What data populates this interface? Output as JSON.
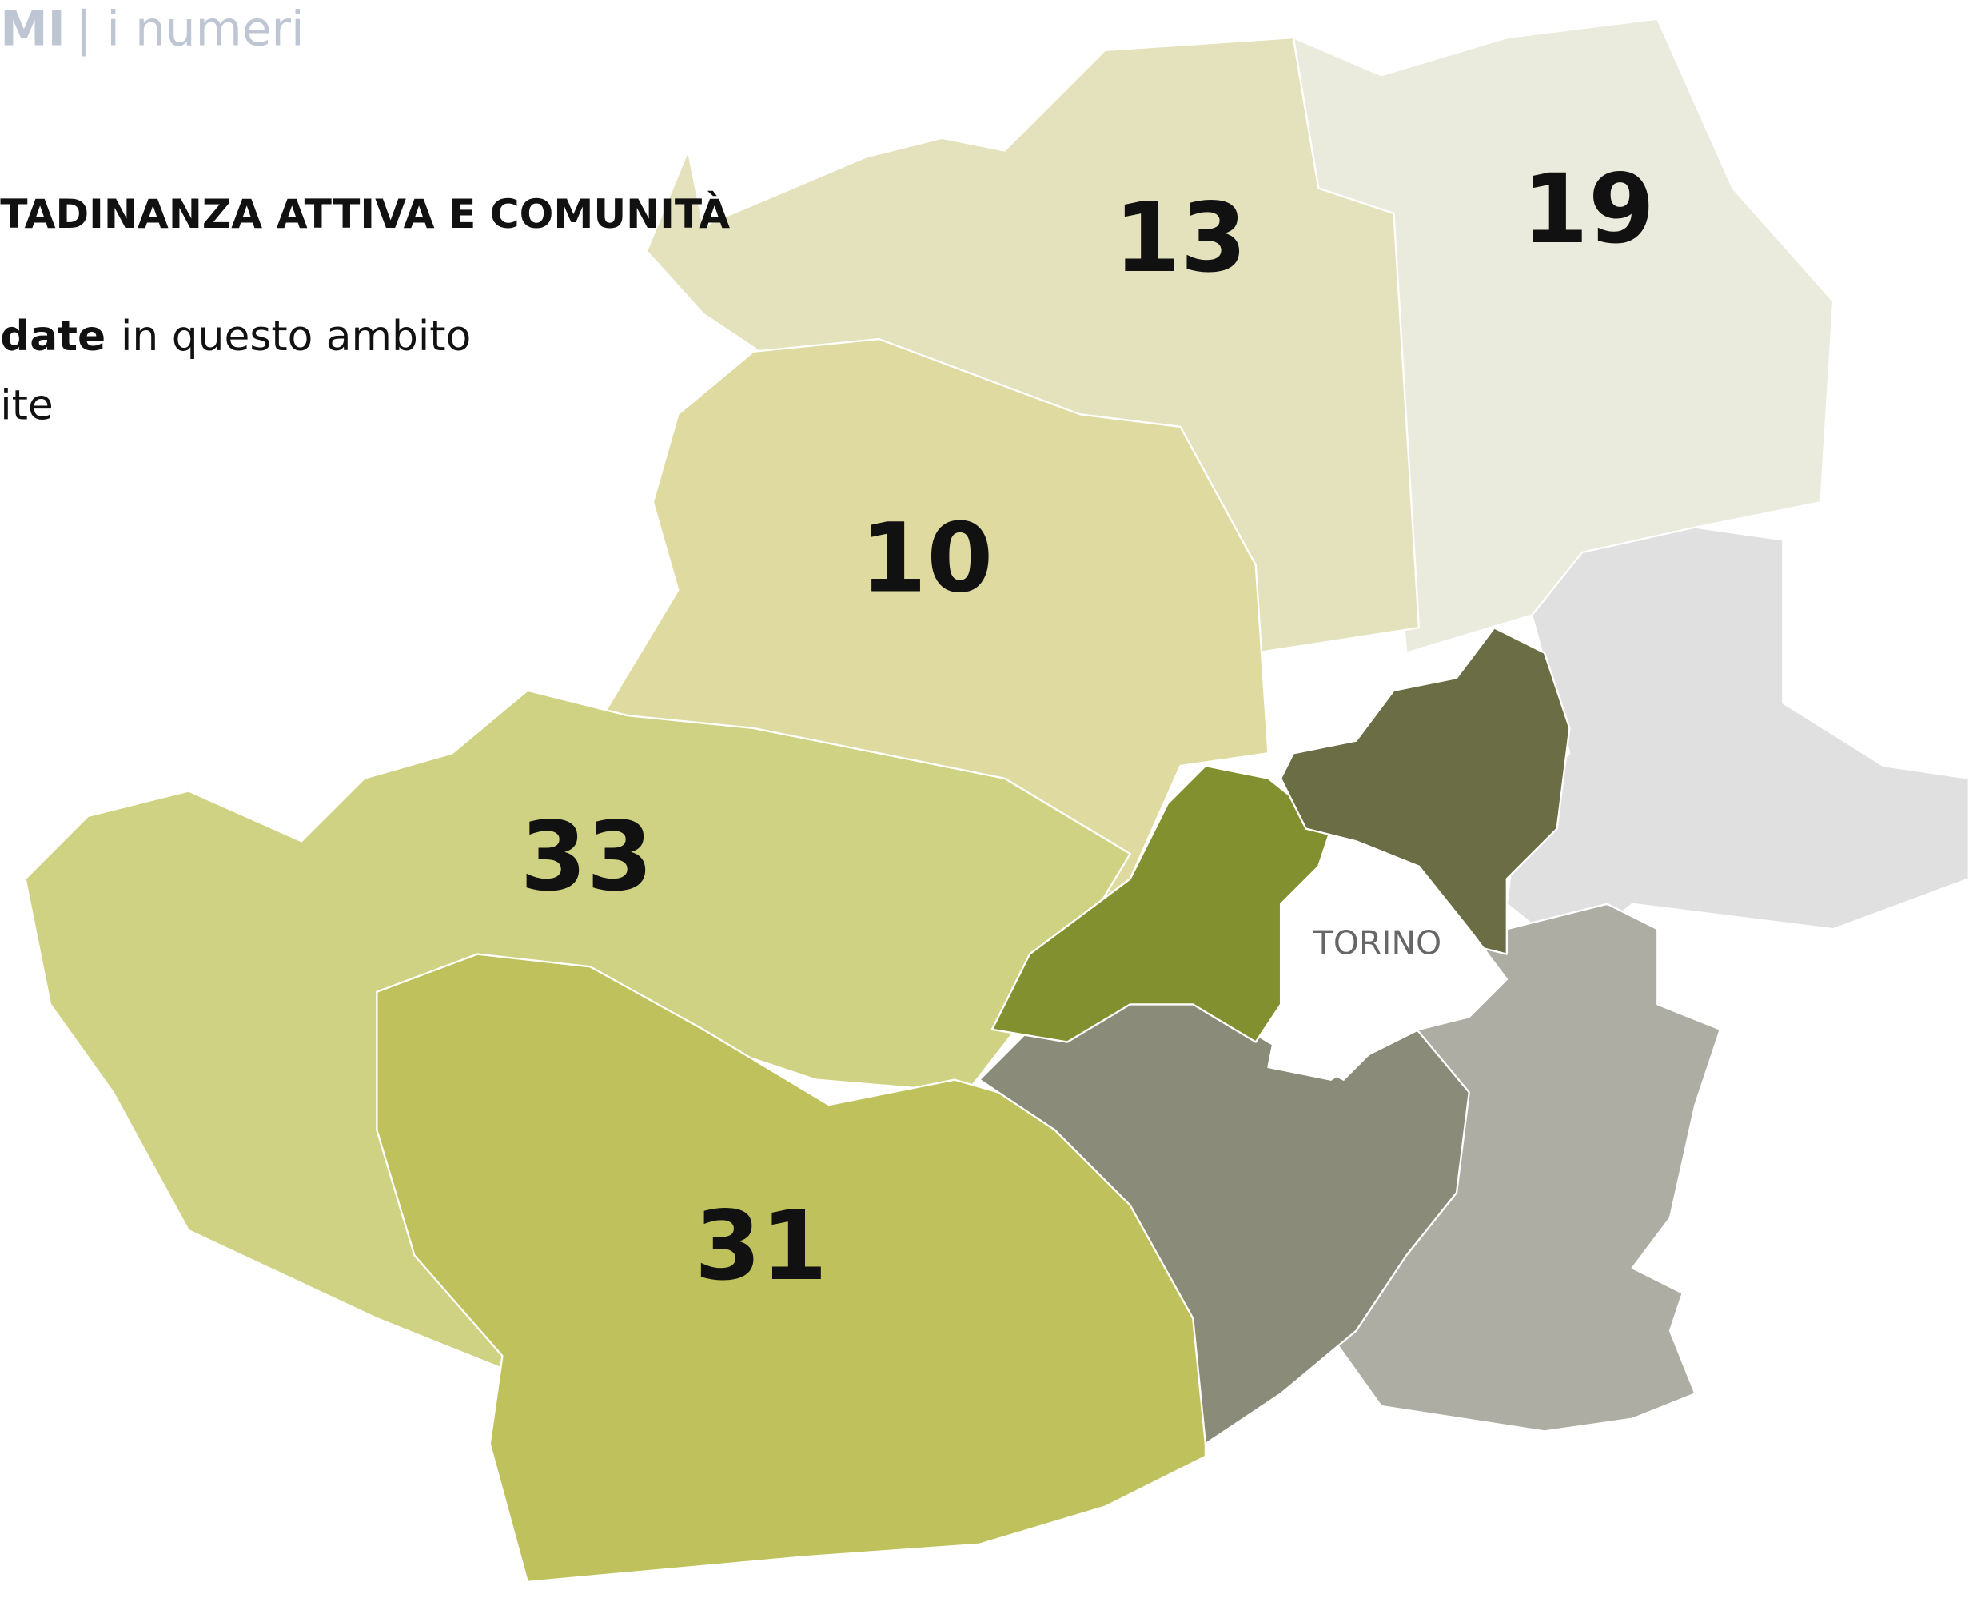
{
  "header": {
    "brand": "MI",
    "section": "| i numeri"
  },
  "title": "TADINANZA ATTIVA E COMUNITÀ",
  "description": {
    "bold": "date",
    "rest": "in questo ambito",
    "line2": "ite"
  },
  "map": {
    "city": "TORINO",
    "zones": [
      {
        "value": 13
      },
      {
        "value": 19
      },
      {
        "value": 10
      },
      {
        "value": 33
      },
      {
        "value": 31
      }
    ]
  }
}
